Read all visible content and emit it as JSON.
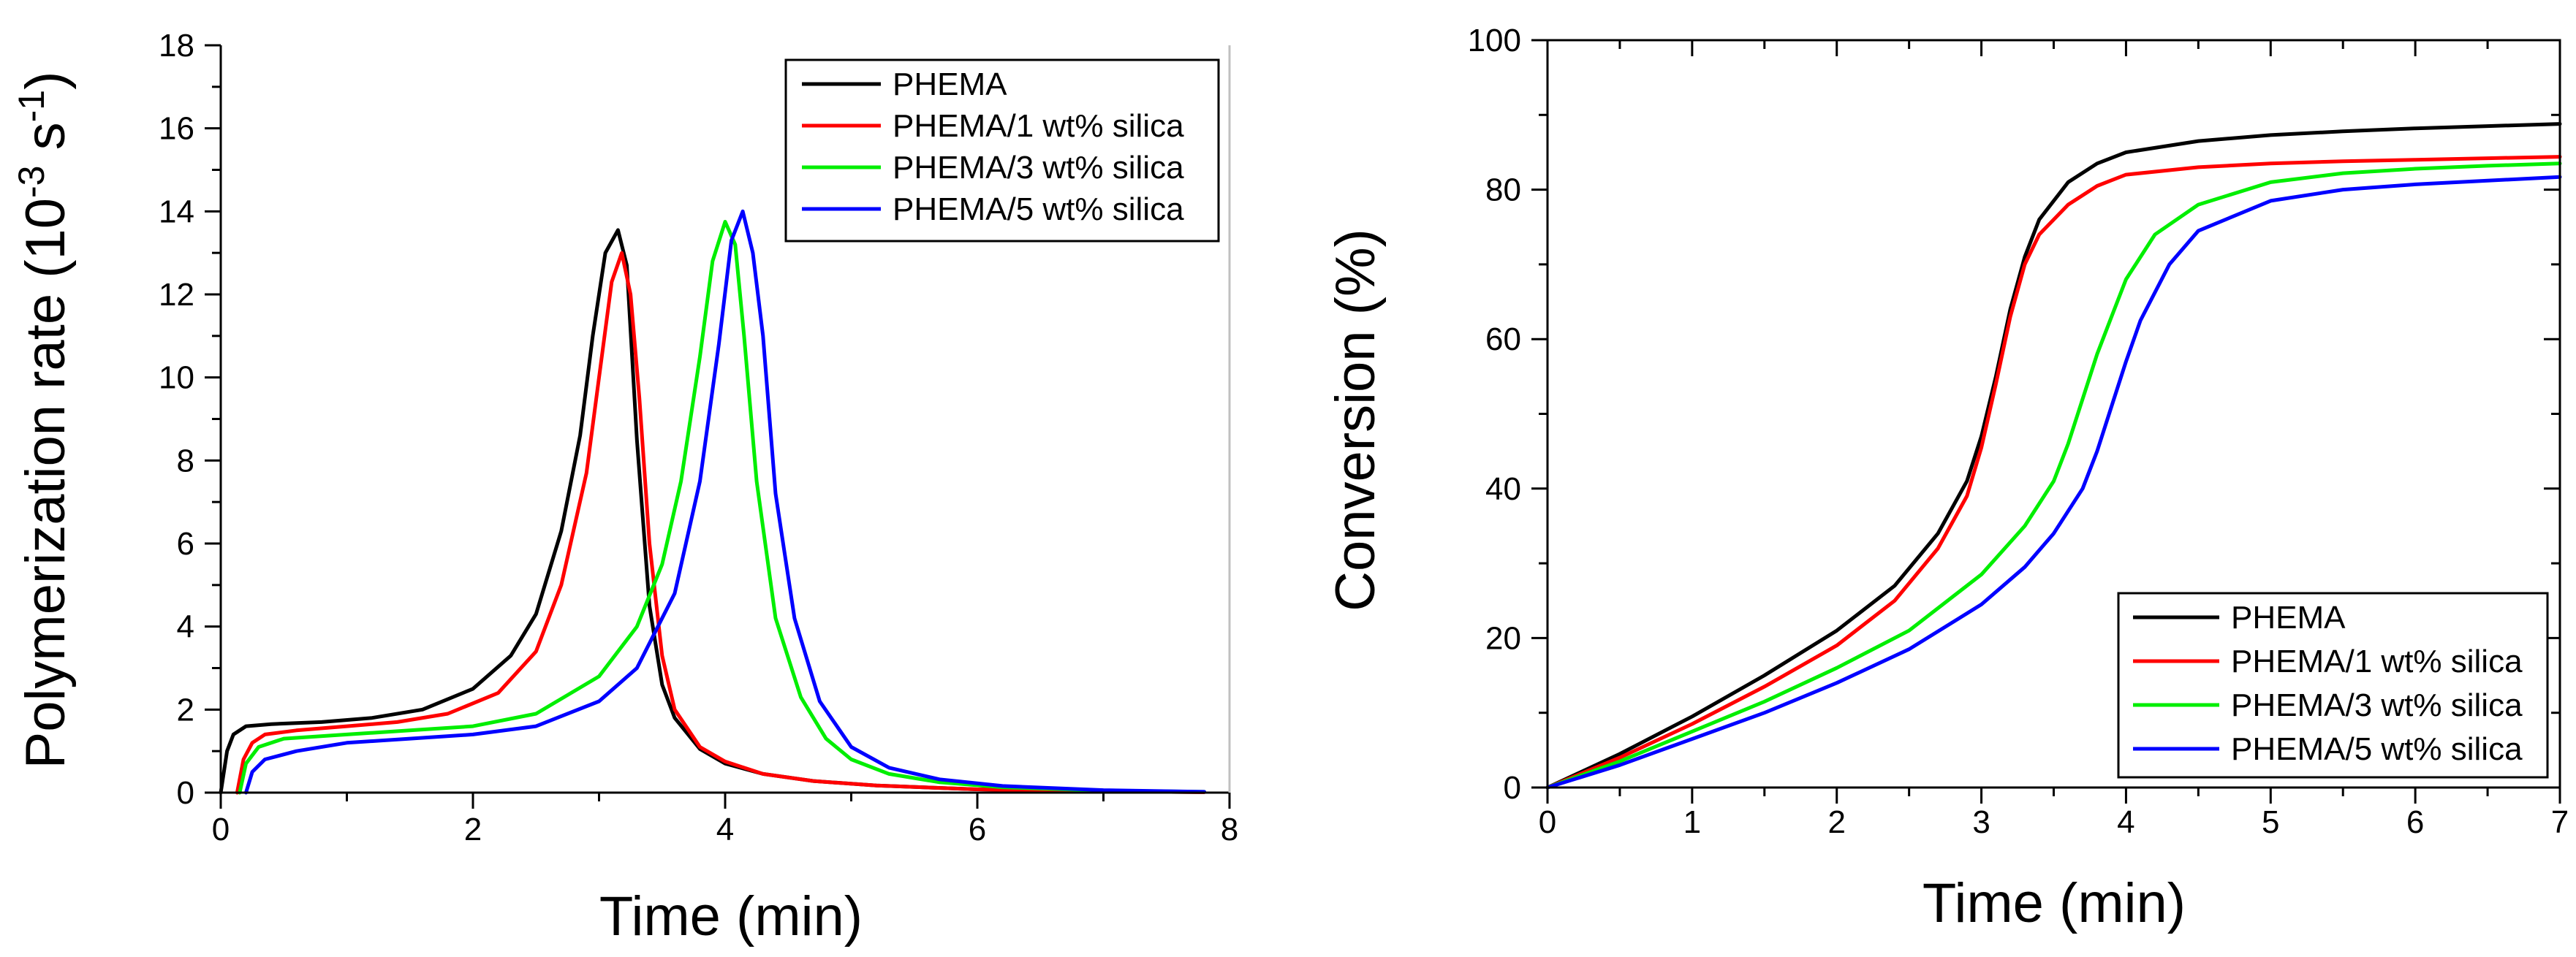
{
  "chart_data": [
    {
      "type": "line",
      "panel": "left",
      "title": "",
      "xlabel": "Time (min)",
      "ylabel": "Polymerization rate (10",
      "ylabel_exp1": "-3",
      "ylabel_mid": " s",
      "ylabel_exp2": "-1",
      "ylabel_end": ")",
      "xlim": [
        0,
        8
      ],
      "ylim": [
        0,
        18
      ],
      "x_ticks": [
        "0",
        "2",
        "4",
        "6",
        "8"
      ],
      "y_ticks": [
        "0",
        "2",
        "4",
        "6",
        "8",
        "10",
        "12",
        "14",
        "16",
        "18"
      ],
      "legend_position": "top-right",
      "grid": false,
      "series": [
        {
          "name": "PHEMA",
          "color": "#000000",
          "x": [
            0,
            0.05,
            0.1,
            0.2,
            0.4,
            0.8,
            1.2,
            1.6,
            2.0,
            2.3,
            2.5,
            2.7,
            2.85,
            2.95,
            3.05,
            3.15,
            3.22,
            3.3,
            3.4,
            3.5,
            3.6,
            3.8,
            4.0,
            4.3,
            4.7,
            5.2,
            6.0,
            7.0,
            7.8
          ],
          "y": [
            0,
            1.0,
            1.4,
            1.6,
            1.65,
            1.7,
            1.8,
            2.0,
            2.5,
            3.3,
            4.3,
            6.3,
            8.6,
            11.0,
            13.0,
            13.55,
            12.7,
            8.5,
            4.5,
            2.6,
            1.8,
            1.05,
            0.7,
            0.45,
            0.28,
            0.17,
            0.08,
            0.03,
            0.01
          ]
        },
        {
          "name": "PHEMA/1 wt% silica",
          "color": "#ff0000",
          "x": [
            0.13,
            0.18,
            0.25,
            0.35,
            0.6,
            1.0,
            1.4,
            1.8,
            2.2,
            2.5,
            2.7,
            2.9,
            3.0,
            3.1,
            3.18,
            3.25,
            3.32,
            3.4,
            3.5,
            3.6,
            3.8,
            4.0,
            4.3,
            4.7,
            5.2,
            6.0,
            7.0,
            7.8
          ],
          "y": [
            0,
            0.8,
            1.2,
            1.4,
            1.5,
            1.6,
            1.7,
            1.9,
            2.4,
            3.4,
            5.0,
            7.7,
            10.0,
            12.3,
            13.0,
            12.0,
            9.5,
            6.0,
            3.3,
            2.0,
            1.1,
            0.75,
            0.45,
            0.28,
            0.17,
            0.08,
            0.03,
            0.01
          ]
        },
        {
          "name": "PHEMA/3 wt% silica",
          "color": "#00ee00",
          "x": [
            0.15,
            0.2,
            0.3,
            0.5,
            1.0,
            1.5,
            2.0,
            2.5,
            3.0,
            3.3,
            3.5,
            3.65,
            3.8,
            3.9,
            4.0,
            4.08,
            4.15,
            4.25,
            4.4,
            4.6,
            4.8,
            5.0,
            5.3,
            5.7,
            6.2,
            7.0,
            7.8
          ],
          "y": [
            0,
            0.7,
            1.1,
            1.3,
            1.4,
            1.5,
            1.6,
            1.9,
            2.8,
            4.0,
            5.5,
            7.5,
            10.5,
            12.8,
            13.75,
            13.2,
            11.0,
            7.5,
            4.2,
            2.3,
            1.3,
            0.8,
            0.45,
            0.25,
            0.13,
            0.05,
            0.02
          ]
        },
        {
          "name": "PHEMA/5 wt% silica",
          "color": "#0000ff",
          "x": [
            0.2,
            0.25,
            0.35,
            0.6,
            1.0,
            1.5,
            2.0,
            2.5,
            3.0,
            3.3,
            3.6,
            3.8,
            3.95,
            4.05,
            4.14,
            4.22,
            4.3,
            4.4,
            4.55,
            4.75,
            5.0,
            5.3,
            5.7,
            6.2,
            7.0,
            7.8
          ],
          "y": [
            0,
            0.5,
            0.8,
            1.0,
            1.2,
            1.3,
            1.4,
            1.6,
            2.2,
            3.0,
            4.8,
            7.5,
            10.8,
            13.3,
            14.0,
            13.0,
            11.0,
            7.2,
            4.2,
            2.2,
            1.1,
            0.6,
            0.32,
            0.16,
            0.06,
            0.02
          ]
        }
      ]
    },
    {
      "type": "line",
      "panel": "right",
      "title": "",
      "xlabel": "Time (min)",
      "ylabel": "Conversion (%)",
      "xlim": [
        0,
        7
      ],
      "ylim": [
        0,
        100
      ],
      "x_ticks": [
        "0",
        "1",
        "2",
        "3",
        "4",
        "5",
        "6",
        "7"
      ],
      "y_ticks": [
        "0",
        "20",
        "40",
        "60",
        "80",
        "100"
      ],
      "legend_position": "bottom-right",
      "grid": false,
      "series": [
        {
          "name": "PHEMA",
          "color": "#000000",
          "x": [
            0,
            0.5,
            1.0,
            1.5,
            2.0,
            2.4,
            2.7,
            2.9,
            3.0,
            3.1,
            3.2,
            3.3,
            3.4,
            3.6,
            3.8,
            4.0,
            4.5,
            5.0,
            5.5,
            6.0,
            6.5,
            7.0
          ],
          "y": [
            0,
            4.5,
            9.5,
            15,
            21,
            27,
            34,
            41,
            47,
            55,
            64,
            71,
            76,
            81,
            83.5,
            85,
            86.5,
            87.3,
            87.8,
            88.2,
            88.5,
            88.8
          ]
        },
        {
          "name": "PHEMA/1 wt% silica",
          "color": "#ff0000",
          "x": [
            0,
            0.5,
            1.0,
            1.5,
            2.0,
            2.4,
            2.7,
            2.9,
            3.0,
            3.1,
            3.2,
            3.3,
            3.4,
            3.6,
            3.8,
            4.0,
            4.5,
            5.0,
            5.5,
            6.0,
            6.5,
            7.0
          ],
          "y": [
            0,
            4,
            8.5,
            13.5,
            19,
            25,
            32,
            39,
            45.5,
            54,
            63,
            70,
            74,
            78,
            80.5,
            82,
            83,
            83.5,
            83.8,
            84,
            84.2,
            84.4
          ]
        },
        {
          "name": "PHEMA/3 wt% silica",
          "color": "#00ee00",
          "x": [
            0,
            0.5,
            1.0,
            1.5,
            2.0,
            2.5,
            3.0,
            3.3,
            3.5,
            3.6,
            3.7,
            3.8,
            3.9,
            4.0,
            4.2,
            4.5,
            5.0,
            5.5,
            6.0,
            6.5,
            7.0
          ],
          "y": [
            0,
            3.5,
            7.5,
            11.5,
            16,
            21,
            28.5,
            35,
            41,
            46,
            52,
            58,
            63,
            68,
            74,
            78,
            81,
            82.2,
            82.8,
            83.2,
            83.5
          ]
        },
        {
          "name": "PHEMA/5 wt% silica",
          "color": "#0000ff",
          "x": [
            0,
            0.5,
            1.0,
            1.5,
            2.0,
            2.5,
            3.0,
            3.3,
            3.5,
            3.7,
            3.8,
            3.9,
            4.0,
            4.1,
            4.3,
            4.5,
            5.0,
            5.5,
            6.0,
            6.5,
            7.0
          ],
          "y": [
            0,
            3,
            6.5,
            10,
            14,
            18.5,
            24.5,
            29.5,
            34,
            40,
            45,
            51,
            57,
            62.5,
            70,
            74.5,
            78.5,
            80,
            80.7,
            81.2,
            81.7
          ]
        }
      ]
    }
  ]
}
